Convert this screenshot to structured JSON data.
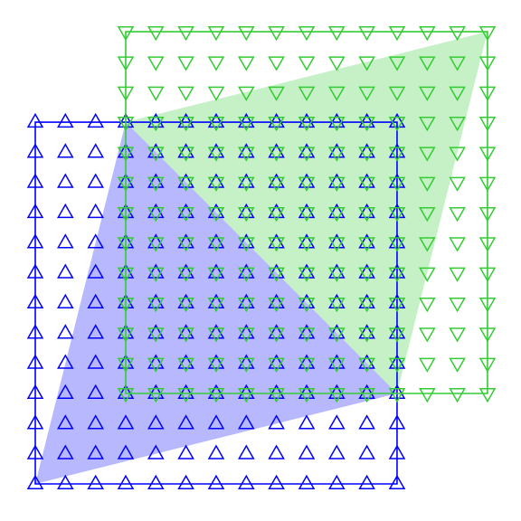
{
  "chart_data": {
    "type": "scatter",
    "title": "",
    "xlabel": "",
    "ylabel": "",
    "axes_visible": false,
    "grid": false,
    "legend": "none",
    "xlim": [
      -0.2,
      15.4
    ],
    "ylim": [
      -0.2,
      15.4
    ],
    "series": [
      {
        "marker": "triangle-up",
        "color": "#0000ff",
        "x_range": [
          0,
          12
        ],
        "y_range": [
          0,
          12
        ],
        "step": 1,
        "edge_line": true
      },
      {
        "marker": "triangle-down",
        "color": "#33cc33",
        "x_range": [
          3,
          15
        ],
        "y_range": [
          3,
          15
        ],
        "step": 1,
        "edge_line": true
      }
    ],
    "shaded_regions": [
      {
        "shape": "triangle",
        "vertices": [
          [
            0,
            0
          ],
          [
            3,
            12
          ],
          [
            12,
            3
          ]
        ],
        "color": "#0000ff",
        "opacity": 0.28
      },
      {
        "shape": "triangle",
        "vertices": [
          [
            3,
            12
          ],
          [
            15,
            15
          ],
          [
            12,
            3
          ]
        ],
        "color": "#33cc33",
        "opacity": 0.28
      }
    ]
  }
}
